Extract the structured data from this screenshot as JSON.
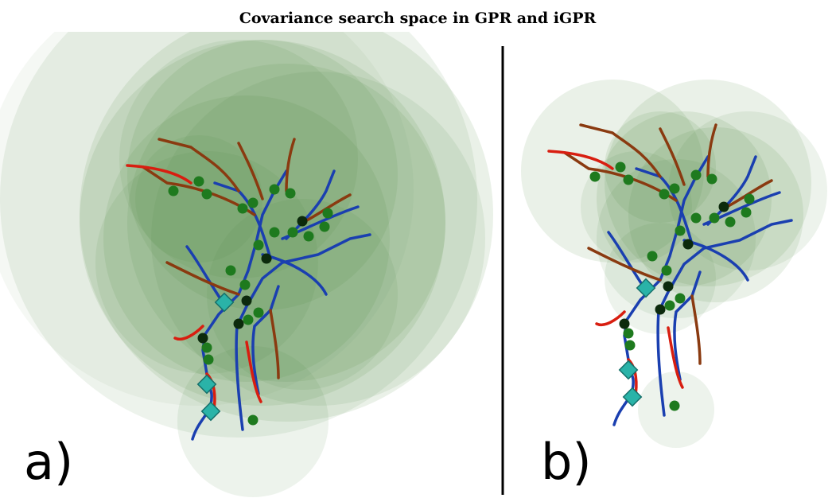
{
  "title": "Covariance search space in GPR and iGPR",
  "panels": [
    {
      "label": "a)"
    },
    {
      "label": "b)"
    }
  ]
}
